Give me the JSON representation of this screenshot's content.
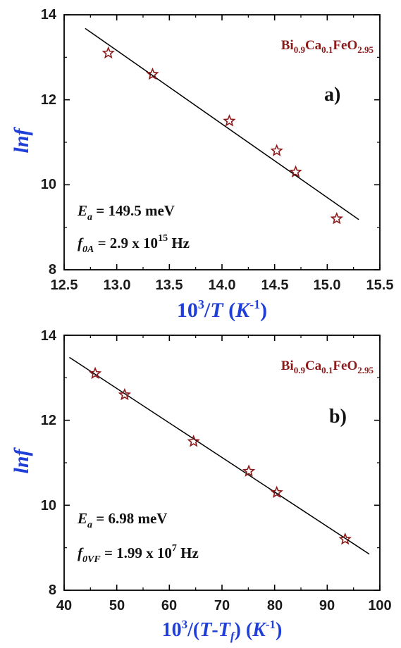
{
  "chart_data": [
    {
      "type": "scatter",
      "panel_label": "a)",
      "formula": {
        "base": "Bi",
        "s1": "0.9",
        "mid": "Ca",
        "s2": "0.1",
        "end": "FeO",
        "s3": "2.95"
      },
      "xlabel": {
        "pre": "10",
        "sup": "3",
        "slash": "/",
        "var": "T",
        "unit_open": " (",
        "unit": "K",
        "unit_sup": "-1",
        "unit_close": ")"
      },
      "ylabel": "lnf",
      "xlim": [
        12.5,
        15.5
      ],
      "ylim": [
        8,
        14
      ],
      "xticks": [
        "12.5",
        "13.0",
        "13.5",
        "14.0",
        "14.5",
        "15.0",
        "15.5"
      ],
      "yticks": [
        "8",
        "10",
        "12",
        "14"
      ],
      "points": [
        {
          "x": 12.92,
          "y": 13.1
        },
        {
          "x": 13.34,
          "y": 12.6
        },
        {
          "x": 14.07,
          "y": 11.5
        },
        {
          "x": 14.52,
          "y": 10.8
        },
        {
          "x": 14.7,
          "y": 10.3
        },
        {
          "x": 15.09,
          "y": 9.2
        }
      ],
      "fit": {
        "x": [
          12.7,
          15.3
        ],
        "y": [
          13.68,
          9.18
        ]
      },
      "annotations": {
        "ea_main": "E",
        "ea_sub": "a",
        "ea_value": " = 149.5 meV",
        "f0_main": "f",
        "f0_sub": "0A",
        "f0_value": " = 2.9 x 10",
        "f0_exp": "15",
        "f0_unit": " Hz"
      },
      "colors": {
        "marker": "#8b1a1a",
        "formula": "#8b1a1a",
        "axis_title": "#1f3fd8",
        "line": "#000000"
      }
    },
    {
      "type": "scatter",
      "panel_label": "b)",
      "formula": {
        "base": "Bi",
        "s1": "0.9",
        "mid": "Ca",
        "s2": "0.1",
        "end": "FeO",
        "s3": "2.95"
      },
      "xlabel": {
        "pre": "10",
        "sup": "3",
        "slash": "/(",
        "var": "T",
        "dash": "-",
        "var2": "T",
        "var2_sub": "f",
        "close": ")",
        "unit_open": " (",
        "unit": "K",
        "unit_sup": "-1",
        "unit_close": ")"
      },
      "ylabel": "lnf",
      "xlim": [
        40,
        100
      ],
      "ylim": [
        8,
        14
      ],
      "xticks": [
        "40",
        "50",
        "60",
        "70",
        "80",
        "90",
        "100"
      ],
      "yticks": [
        "8",
        "10",
        "12",
        "14"
      ],
      "points": [
        {
          "x": 45.9,
          "y": 13.1
        },
        {
          "x": 51.5,
          "y": 12.6
        },
        {
          "x": 64.6,
          "y": 11.5
        },
        {
          "x": 75.1,
          "y": 10.8
        },
        {
          "x": 80.4,
          "y": 10.3
        },
        {
          "x": 93.4,
          "y": 9.2
        }
      ],
      "fit": {
        "x": [
          41,
          98
        ],
        "y": [
          13.48,
          8.85
        ]
      },
      "annotations": {
        "ea_main": "E",
        "ea_sub": "a",
        "ea_value": " = 6.98 meV",
        "f0_main": "f",
        "f0_sub": "0VF",
        "f0_value": " = 1.99 x 10",
        "f0_exp": "7",
        "f0_unit": " Hz"
      },
      "colors": {
        "marker": "#8b1a1a",
        "formula": "#8b1a1a",
        "axis_title": "#1f3fd8",
        "line": "#000000"
      }
    }
  ]
}
